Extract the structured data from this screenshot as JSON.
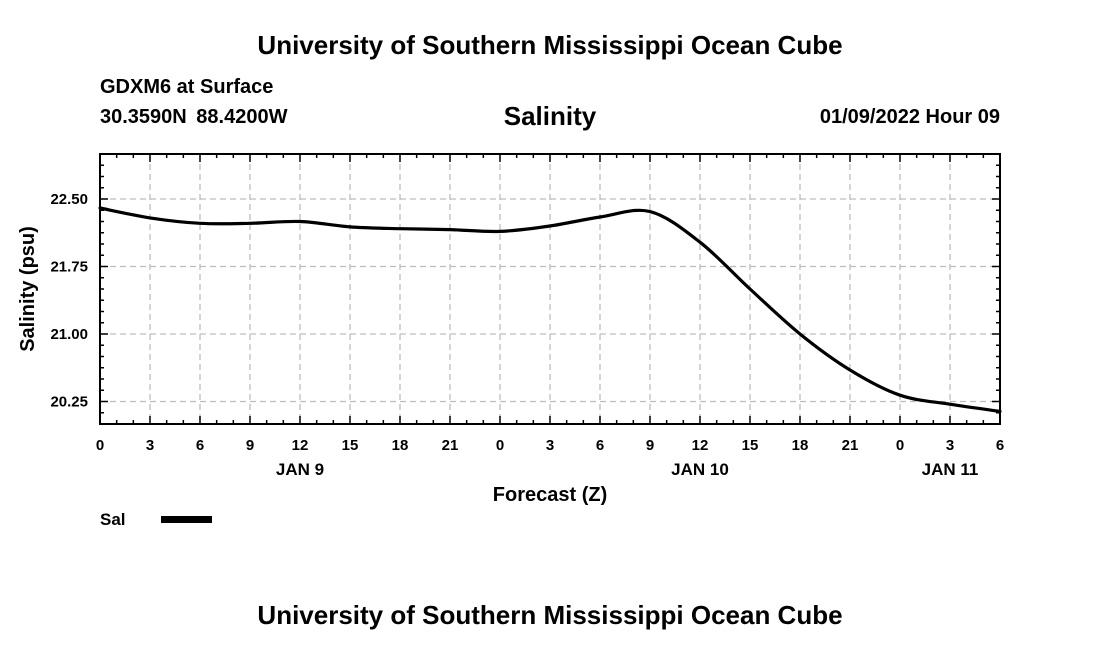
{
  "header": {
    "title": "University of Southern Mississippi Ocean Cube",
    "station": "GDXM6 at Surface",
    "coordinates": "30.3590N  88.4200W",
    "variable": "Salinity",
    "datetime": "01/09/2022 Hour 09"
  },
  "legend": {
    "label": "Sal"
  },
  "footer": {
    "title": "University of Southern Mississippi Ocean Cube"
  },
  "chart_data": {
    "type": "line",
    "title": "Salinity",
    "xlabel": "Forecast (Z)",
    "ylabel": "Salinity (psu)",
    "grid": true,
    "legend_position": "bottom-left",
    "xlim": [
      0,
      54
    ],
    "ylim": [
      20.0,
      23.0
    ],
    "x_tick_values": [
      0,
      3,
      6,
      9,
      12,
      15,
      18,
      21,
      24,
      27,
      30,
      33,
      36,
      39,
      42,
      45,
      48,
      51,
      54
    ],
    "x_tick_labels": [
      "0",
      "3",
      "6",
      "9",
      "12",
      "15",
      "18",
      "21",
      "0",
      "3",
      "6",
      "9",
      "12",
      "15",
      "18",
      "21",
      "0",
      "3",
      "6"
    ],
    "date_labels": [
      {
        "x": 12,
        "label": "JAN 9"
      },
      {
        "x": 36,
        "label": "JAN 10"
      },
      {
        "x": 51,
        "label": "JAN 11"
      }
    ],
    "y_tick_values": [
      20.25,
      21.0,
      21.75,
      22.5
    ],
    "y_tick_labels": [
      "20.25",
      "21.00",
      "21.75",
      "22.50"
    ],
    "y_minor_step": 0.25,
    "series": [
      {
        "name": "Sal",
        "color": "#000000",
        "x": [
          0,
          3,
          6,
          9,
          12,
          15,
          18,
          21,
          24,
          27,
          30,
          33,
          36,
          39,
          42,
          45,
          48,
          51,
          54
        ],
        "values": [
          22.4,
          22.29,
          22.23,
          22.23,
          22.25,
          22.19,
          22.17,
          22.16,
          22.14,
          22.2,
          22.3,
          22.36,
          22.02,
          21.5,
          21.0,
          20.6,
          20.32,
          20.22,
          20.14
        ]
      }
    ]
  }
}
